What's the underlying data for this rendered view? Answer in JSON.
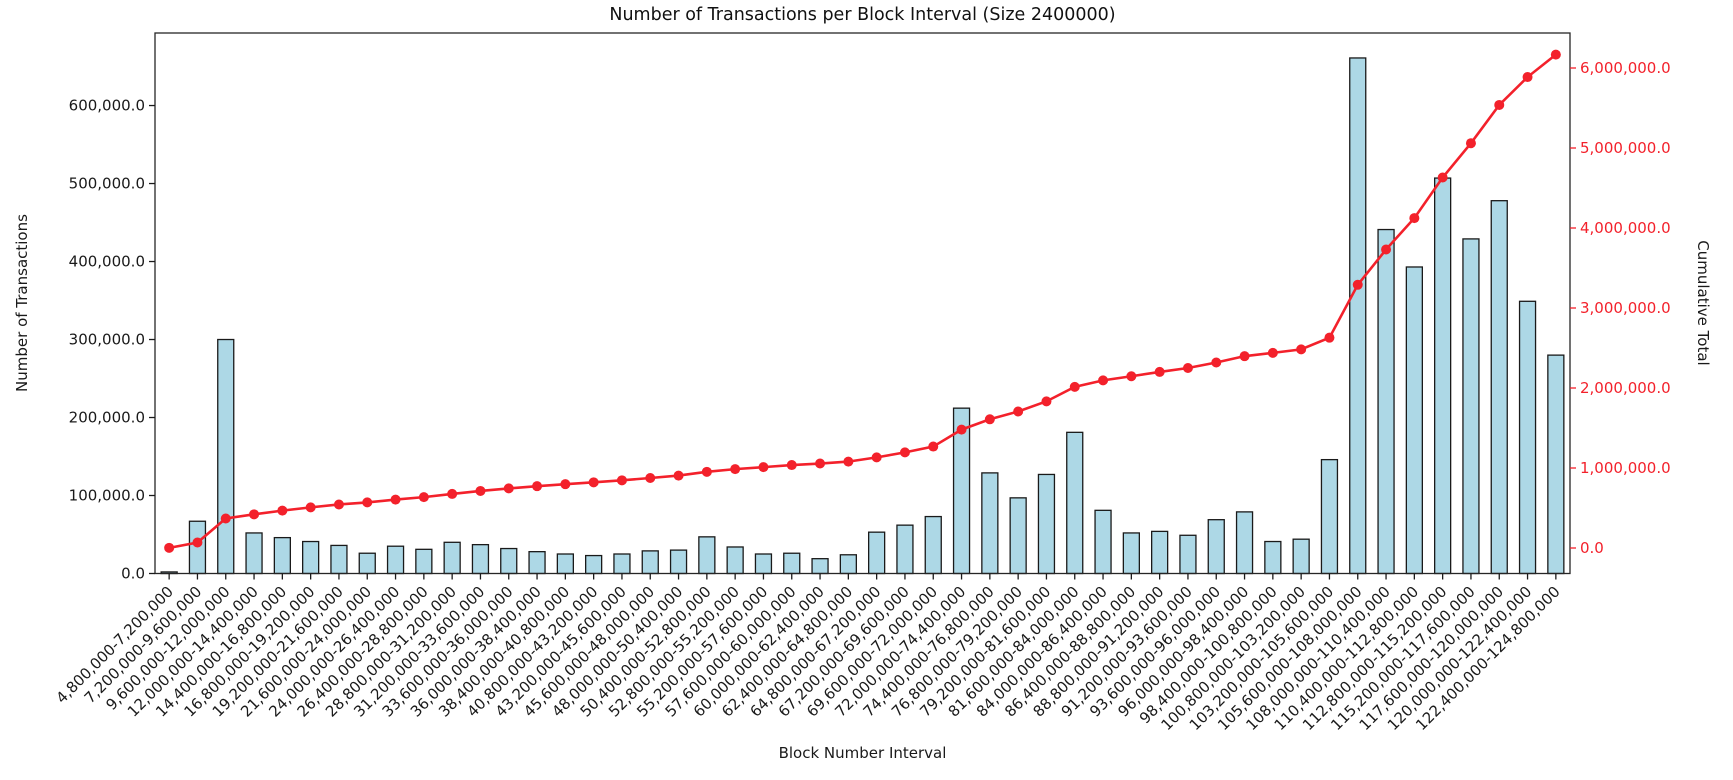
{
  "figure": {
    "background": "#ffffff"
  },
  "chart_data": {
    "type": "bar+line",
    "title": "Number of Transactions per Block Interval (Size 2400000)",
    "xlabel": "Block Number Interval",
    "ylabel_left": "Number of Transactions",
    "ylabel_right": "Cumulative Total",
    "grid": false,
    "legend": "none",
    "categories": [
      "4,800,000-7,200,000",
      "7,200,000-9,600,000",
      "9,600,000-12,000,000",
      "12,000,000-14,400,000",
      "14,400,000-16,800,000",
      "16,800,000-19,200,000",
      "19,200,000-21,600,000",
      "21,600,000-24,000,000",
      "24,000,000-26,400,000",
      "26,400,000-28,800,000",
      "28,800,000-31,200,000",
      "31,200,000-33,600,000",
      "33,600,000-36,000,000",
      "36,000,000-38,400,000",
      "38,400,000-40,800,000",
      "40,800,000-43,200,000",
      "43,200,000-45,600,000",
      "45,600,000-48,000,000",
      "48,000,000-50,400,000",
      "50,400,000-52,800,000",
      "52,800,000-55,200,000",
      "55,200,000-57,600,000",
      "57,600,000-60,000,000",
      "60,000,000-62,400,000",
      "62,400,000-64,800,000",
      "64,800,000-67,200,000",
      "67,200,000-69,600,000",
      "69,600,000-72,000,000",
      "72,000,000-74,400,000",
      "74,400,000-76,800,000",
      "76,800,000-79,200,000",
      "79,200,000-81,600,000",
      "81,600,000-84,000,000",
      "84,000,000-86,400,000",
      "86,400,000-88,800,000",
      "88,800,000-91,200,000",
      "91,200,000-93,600,000",
      "93,600,000-96,000,000",
      "96,000,000-98,400,000",
      "98,400,000-100,800,000",
      "100,800,000-103,200,000",
      "103,200,000-105,600,000",
      "105,600,000-108,000,000",
      "108,000,000-110,400,000",
      "110,400,000-112,800,000",
      "112,800,000-115,200,000",
      "115,200,000-117,600,000",
      "117,600,000-120,000,000",
      "120,000,000-122,400,000",
      "122,400,000-124,800,000"
    ],
    "series": [
      {
        "name": "Number of Transactions",
        "type": "bar",
        "axis": "left",
        "color": "#add8e6",
        "edge_color": "#1a1a1a",
        "values": [
          2000,
          67000,
          300000,
          52000,
          46000,
          41000,
          36000,
          26000,
          35000,
          31000,
          40000,
          37000,
          32000,
          28000,
          25000,
          23000,
          25000,
          29000,
          30000,
          47000,
          34000,
          25000,
          26000,
          19000,
          24000,
          53000,
          62000,
          73000,
          212000,
          129000,
          97000,
          127000,
          181000,
          81000,
          52000,
          54000,
          49000,
          69000,
          79000,
          41000,
          44000,
          146000,
          661000,
          441000,
          393000,
          507000,
          429000,
          478000,
          349000,
          280000
        ]
      },
      {
        "name": "Cumulative Total",
        "type": "line",
        "axis": "right",
        "color": "#f3212b",
        "marker": "circle",
        "values": [
          2000,
          69000,
          369000,
          421000,
          467000,
          508000,
          544000,
          570000,
          605000,
          636000,
          676000,
          713000,
          745000,
          773000,
          798000,
          821000,
          846000,
          875000,
          905000,
          952000,
          986000,
          1011000,
          1037000,
          1056000,
          1080000,
          1133000,
          1195000,
          1268000,
          1480000,
          1609000,
          1706000,
          1833000,
          2014000,
          2095000,
          2147000,
          2201000,
          2250000,
          2319000,
          2398000,
          2439000,
          2483000,
          2629000,
          3290000,
          3731000,
          4124000,
          4631000,
          5060000,
          5538000,
          5887000,
          6167000
        ]
      }
    ],
    "y_left_axis": {
      "color": "#1a1a1a",
      "range": [
        0,
        693000
      ],
      "tick_values": [
        0,
        100000,
        200000,
        300000,
        400000,
        500000,
        600000
      ],
      "tick_labels": [
        "0.0",
        "100,000.0",
        "200,000.0",
        "300,000.0",
        "400,000.0",
        "500,000.0",
        "600,000.0"
      ]
    },
    "y_right_axis": {
      "color": "#f3212b",
      "range": [
        -318750,
        6437500
      ],
      "tick_values": [
        0,
        1000000,
        2000000,
        3000000,
        4000000,
        5000000,
        6000000
      ],
      "tick_labels": [
        "0.0",
        "1,000,000.0",
        "2,000,000.0",
        "3,000,000.0",
        "4,000,000.0",
        "5,000,000.0",
        "6,000,000.0"
      ]
    }
  }
}
